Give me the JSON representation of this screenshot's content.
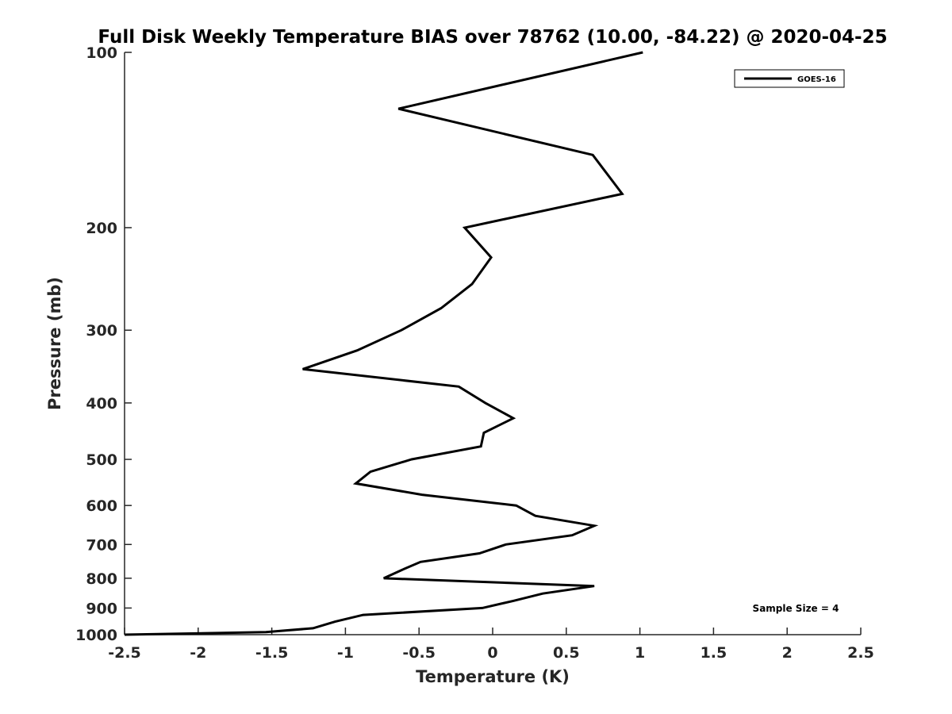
{
  "chart_data": {
    "type": "line",
    "title": "Full Disk Weekly Temperature BIAS over 78762 (10.00, -84.22) @ 2020-04-25",
    "xlabel": "Temperature (K)",
    "ylabel": "Pressure (mb)",
    "xlim": [
      -2.5,
      2.5
    ],
    "ylim": [
      1000,
      100
    ],
    "yscale": "log",
    "y_reversed": true,
    "grid": false,
    "legend_position": "top-right",
    "x_ticks": [
      "-2.5",
      "-2",
      "-1.5",
      "-1",
      "-0.5",
      "0",
      "0.5",
      "1",
      "1.5",
      "2",
      "2.5"
    ],
    "x_tick_values": [
      -2.5,
      -2,
      -1.5,
      -1,
      -0.5,
      0,
      0.5,
      1,
      1.5,
      2,
      2.5
    ],
    "y_ticks": [
      "100",
      "200",
      "300",
      "400",
      "500",
      "600",
      "700",
      "800",
      "900",
      "1000"
    ],
    "y_tick_values": [
      100,
      200,
      300,
      400,
      500,
      600,
      700,
      800,
      900,
      1000
    ],
    "series": [
      {
        "name": "GOES-16",
        "color": "#000000",
        "points": [
          {
            "x": 1.02,
            "p": 100
          },
          {
            "x": -0.64,
            "p": 125
          },
          {
            "x": 0.68,
            "p": 150
          },
          {
            "x": 0.88,
            "p": 175
          },
          {
            "x": -0.19,
            "p": 200
          },
          {
            "x": -0.01,
            "p": 225
          },
          {
            "x": -0.14,
            "p": 250
          },
          {
            "x": -0.35,
            "p": 275
          },
          {
            "x": -0.62,
            "p": 300
          },
          {
            "x": -0.92,
            "p": 325
          },
          {
            "x": -1.29,
            "p": 350
          },
          {
            "x": -0.23,
            "p": 375
          },
          {
            "x": -0.05,
            "p": 400
          },
          {
            "x": 0.14,
            "p": 425
          },
          {
            "x": -0.06,
            "p": 450
          },
          {
            "x": -0.08,
            "p": 475
          },
          {
            "x": -0.55,
            "p": 500
          },
          {
            "x": -0.83,
            "p": 525
          },
          {
            "x": -0.93,
            "p": 550
          },
          {
            "x": -0.48,
            "p": 575
          },
          {
            "x": 0.16,
            "p": 600
          },
          {
            "x": 0.29,
            "p": 625
          },
          {
            "x": 0.69,
            "p": 650
          },
          {
            "x": 0.54,
            "p": 675
          },
          {
            "x": 0.09,
            "p": 700
          },
          {
            "x": -0.09,
            "p": 725
          },
          {
            "x": -0.49,
            "p": 750
          },
          {
            "x": -0.62,
            "p": 775
          },
          {
            "x": -0.74,
            "p": 800
          },
          {
            "x": 0.69,
            "p": 825
          },
          {
            "x": 0.34,
            "p": 850
          },
          {
            "x": 0.14,
            "p": 875
          },
          {
            "x": -0.07,
            "p": 900
          },
          {
            "x": -0.88,
            "p": 925
          },
          {
            "x": -1.07,
            "p": 950
          },
          {
            "x": -1.22,
            "p": 975
          },
          {
            "x": -1.54,
            "p": 990
          },
          {
            "x": -2.5,
            "p": 1000
          }
        ]
      }
    ],
    "annotation": "Sample Size = 4"
  }
}
